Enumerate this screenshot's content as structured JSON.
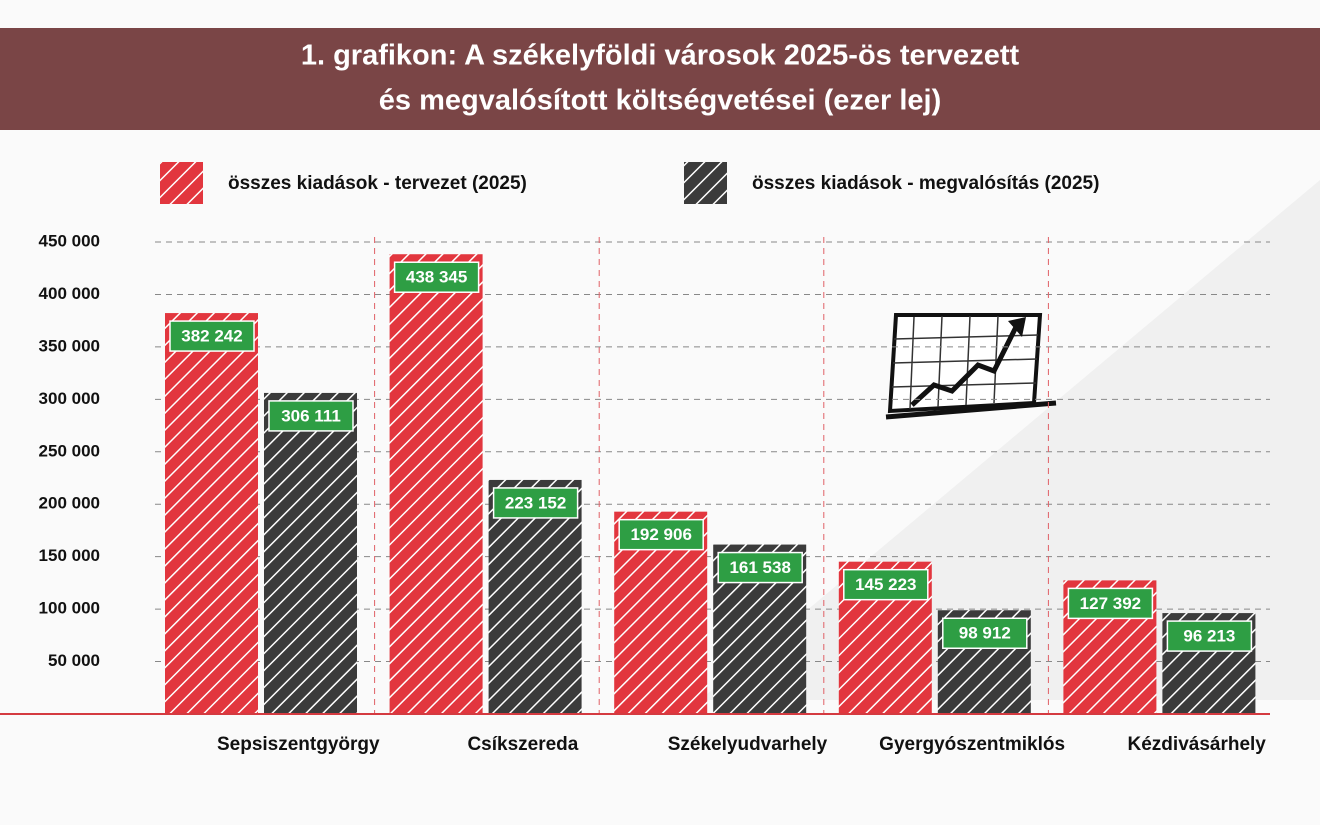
{
  "chart_data": {
    "type": "bar",
    "title": [
      "1. grafikon: A székelyföldi városok 2025-ös tervezett",
      "és megvalósított költségvetései (ezer lej)"
    ],
    "categories": [
      "Sepsiszentgyörgy",
      "Csíkszereda",
      "Székelyudvarhely",
      "Gyergyószentmiklós",
      "Kézdivásárhely"
    ],
    "series": [
      {
        "name": "összes kiadások - tervezet (2025)",
        "color": "#e2363e",
        "values": [
          382242,
          438345,
          192906,
          145223,
          127392
        ],
        "value_labels": [
          "382 242",
          "438 345",
          "192 906",
          "145 223",
          "127 392"
        ]
      },
      {
        "name": "összes kiadások - megvalósítás (2025)",
        "color": "#3b3b3b",
        "values": [
          306111,
          223152,
          161538,
          98912,
          96213
        ],
        "value_labels": [
          "306 111",
          "223 152",
          "161 538",
          "98 912",
          "96 213"
        ]
      }
    ],
    "ylim": [
      0,
      450000
    ],
    "yticks": [
      {
        "value": 50000,
        "label": "50 000"
      },
      {
        "value": 100000,
        "label": "100 000"
      },
      {
        "value": 150000,
        "label": "150 000"
      },
      {
        "value": 200000,
        "label": "200 000"
      },
      {
        "value": 250000,
        "label": "250 000"
      },
      {
        "value": 300000,
        "label": "300 000"
      },
      {
        "value": 350000,
        "label": "350 000"
      },
      {
        "value": 400000,
        "label": "400 000"
      },
      {
        "value": 450000,
        "label": "450 000"
      }
    ],
    "grid": true,
    "label_color": "#2e9e44"
  }
}
